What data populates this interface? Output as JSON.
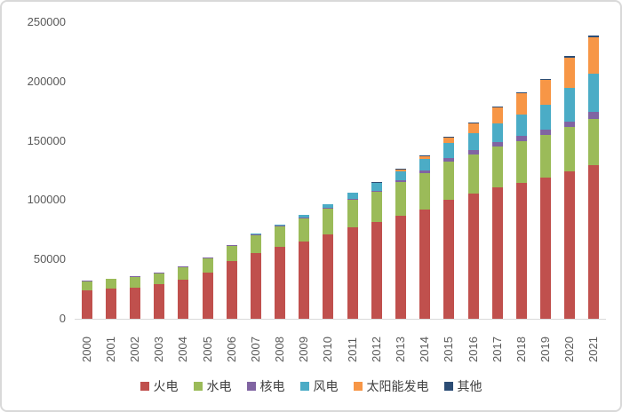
{
  "chart_data": {
    "type": "bar",
    "stacked": true,
    "title": "",
    "xlabel": "",
    "ylabel": "",
    "grid": false,
    "legend_position": "bottom",
    "ylim": [
      0,
      250000
    ],
    "ytick_step": 50000,
    "yticks": [
      0,
      50000,
      100000,
      150000,
      200000,
      250000
    ],
    "ytick_labels": [
      "0",
      "50000",
      "100000",
      "150000",
      "200000",
      "250000"
    ],
    "categories": [
      "2000",
      "2001",
      "2002",
      "2003",
      "2004",
      "2005",
      "2006",
      "2007",
      "2008",
      "2009",
      "2010",
      "2011",
      "2012",
      "2013",
      "2014",
      "2015",
      "2016",
      "2017",
      "2018",
      "2019",
      "2020",
      "2021"
    ],
    "series": [
      {
        "name": "火电",
        "color": "#C0504D",
        "values": [
          23754,
          25301,
          26555,
          28977,
          32948,
          39138,
          48382,
          55607,
          60286,
          65108,
          70967,
          76834,
          81968,
          87009,
          92363,
          100554,
          105388,
          110604,
          114408,
          118957,
          124517,
          129678
        ]
      },
      {
        "name": "水电",
        "color": "#9BBB59",
        "values": [
          7935,
          8301,
          8607,
          9490,
          10524,
          11739,
          13029,
          14823,
          17260,
          19629,
          21606,
          23298,
          24947,
          28044,
          30486,
          31954,
          33211,
          34411,
          35259,
          35804,
          37016,
          39092
        ]
      },
      {
        "name": "核电",
        "color": "#8064A2",
        "values": [
          210,
          210,
          447,
          619,
          684,
          685,
          685,
          885,
          885,
          908,
          1082,
          1257,
          1257,
          1466,
          2008,
          2717,
          3364,
          3582,
          4466,
          4874,
          4989,
          5326
        ]
      },
      {
        "name": "风电",
        "color": "#4BACC6",
        "values": [
          34,
          38,
          47,
          55,
          76,
          106,
          207,
          420,
          839,
          1760,
          2958,
          4623,
          6142,
          7652,
          9657,
          13075,
          14747,
          16367,
          18427,
          20915,
          28153,
          32848
        ]
      },
      {
        "name": "太阳能发电",
        "color": "#F79646",
        "values": [
          0,
          0,
          0,
          0,
          0,
          0,
          0,
          0,
          3,
          5,
          26,
          212,
          341,
          1589,
          2486,
          4318,
          7742,
          13042,
          17463,
          20468,
          25343,
          30656
        ]
      },
      {
        "name": "其他",
        "color": "#2C4D75",
        "values": [
          0,
          0,
          0,
          0,
          0,
          0,
          0,
          0,
          0,
          0,
          0,
          300,
          500,
          700,
          800,
          900,
          1000,
          1100,
          1200,
          1300,
          1400,
          1500
        ]
      }
    ]
  }
}
